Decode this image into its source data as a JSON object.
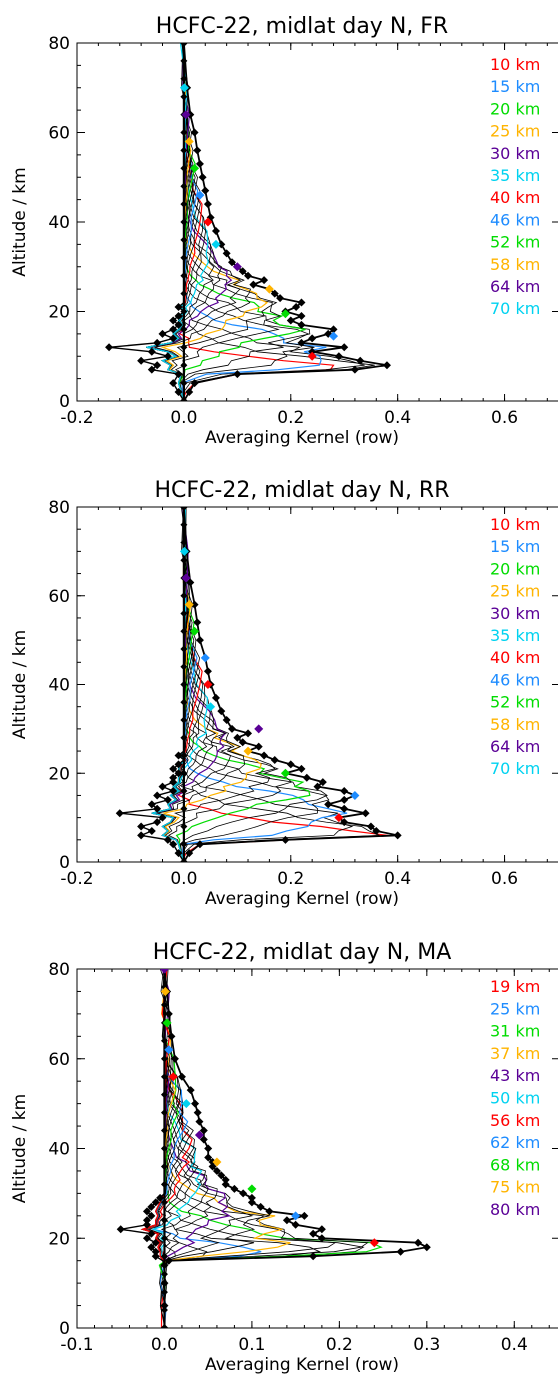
{
  "chart_data": [
    {
      "type": "line",
      "title": "HCFC-22, midlat day N, FR",
      "xlabel": "Averaging Kernel (row)",
      "ylabel": "Altitude / km",
      "xlim": [
        -0.2,
        0.7
      ],
      "ylim": [
        0,
        80
      ],
      "xticks": [
        "-0.2",
        "0.0",
        "0.2",
        "0.4",
        "0.6"
      ],
      "xtick_values": [
        -0.2,
        0.0,
        0.2,
        0.4,
        0.6
      ],
      "yticks": [
        "0",
        "20",
        "40",
        "60",
        "80"
      ],
      "ytick_values": [
        0,
        20,
        40,
        60,
        80
      ],
      "legend_position": "top-right",
      "legend": [
        {
          "label": "10 km",
          "color": "#ff0000"
        },
        {
          "label": "15 km",
          "color": "#1e8cff"
        },
        {
          "label": "20 km",
          "color": "#00dc00"
        },
        {
          "label": "25 km",
          "color": "#ffb400"
        },
        {
          "label": "30 km",
          "color": "#5a0096"
        },
        {
          "label": "35 km",
          "color": "#00d2f0"
        },
        {
          "label": "40 km",
          "color": "#ff0000"
        },
        {
          "label": "46 km",
          "color": "#1e8cff"
        },
        {
          "label": "52 km",
          "color": "#00dc00"
        },
        {
          "label": "58 km",
          "color": "#ffb400"
        },
        {
          "label": "64 km",
          "color": "#5a0096"
        },
        {
          "label": "70 km",
          "color": "#00d2f0"
        }
      ],
      "envelope": {
        "y": [
          0,
          2,
          4,
          6,
          7,
          8,
          9,
          10,
          11,
          12,
          13,
          14,
          15,
          16,
          17,
          18,
          19,
          20,
          21,
          22,
          23,
          24,
          25,
          26,
          27,
          28,
          29,
          30,
          31,
          33,
          35,
          38,
          41,
          44,
          47,
          50,
          53,
          56,
          60,
          64,
          70,
          80
        ],
        "right": [
          0.0,
          0.01,
          0.02,
          0.1,
          0.32,
          0.38,
          0.33,
          0.29,
          0.24,
          0.3,
          0.22,
          0.24,
          0.27,
          0.28,
          0.22,
          0.2,
          0.22,
          0.19,
          0.21,
          0.22,
          0.18,
          0.17,
          0.16,
          0.13,
          0.15,
          0.12,
          0.11,
          0.1,
          0.09,
          0.08,
          0.07,
          0.06,
          0.05,
          0.045,
          0.04,
          0.035,
          0.03,
          0.025,
          0.02,
          0.012,
          0.006,
          0.0
        ],
        "left": [
          0.0,
          -0.01,
          -0.02,
          -0.01,
          -0.06,
          -0.05,
          -0.08,
          -0.03,
          -0.06,
          -0.14,
          -0.05,
          -0.02,
          -0.04,
          -0.02,
          -0.01,
          -0.02,
          -0.01,
          0.0,
          -0.01,
          0.0,
          0.0,
          0.0,
          0.0,
          0.0,
          0.0,
          0.0,
          0.0,
          0.0,
          0.0,
          0.0,
          0.0,
          0.0,
          0.0,
          0.0,
          0.0,
          0.0,
          0.0,
          0.0,
          0.0,
          0.0,
          0.0,
          0.0
        ]
      },
      "peaks": [
        {
          "x": 0.24,
          "y": 10
        },
        {
          "x": 0.28,
          "y": 14.5
        },
        {
          "x": 0.19,
          "y": 19.5
        },
        {
          "x": 0.16,
          "y": 25
        },
        {
          "x": 0.1,
          "y": 30
        },
        {
          "x": 0.06,
          "y": 35
        },
        {
          "x": 0.045,
          "y": 40
        },
        {
          "x": 0.03,
          "y": 46
        },
        {
          "x": 0.02,
          "y": 52
        },
        {
          "x": 0.01,
          "y": 58
        },
        {
          "x": 0.004,
          "y": 64
        },
        {
          "x": 0.001,
          "y": 70
        }
      ]
    },
    {
      "type": "line",
      "title": "HCFC-22, midlat day N, RR",
      "xlabel": "Averaging Kernel (row)",
      "ylabel": "Altitude / km",
      "xlim": [
        -0.2,
        0.7
      ],
      "ylim": [
        0,
        80
      ],
      "xticks": [
        "-0.2",
        "0.0",
        "0.2",
        "0.4",
        "0.6"
      ],
      "xtick_values": [
        -0.2,
        0.0,
        0.2,
        0.4,
        0.6
      ],
      "yticks": [
        "0",
        "20",
        "40",
        "60",
        "80"
      ],
      "ytick_values": [
        0,
        20,
        40,
        60,
        80
      ],
      "legend_position": "top-right",
      "legend": [
        {
          "label": "10 km",
          "color": "#ff0000"
        },
        {
          "label": "15 km",
          "color": "#1e8cff"
        },
        {
          "label": "20 km",
          "color": "#00dc00"
        },
        {
          "label": "25 km",
          "color": "#ffb400"
        },
        {
          "label": "30 km",
          "color": "#5a0096"
        },
        {
          "label": "35 km",
          "color": "#00d2f0"
        },
        {
          "label": "40 km",
          "color": "#ff0000"
        },
        {
          "label": "46 km",
          "color": "#1e8cff"
        },
        {
          "label": "52 km",
          "color": "#00dc00"
        },
        {
          "label": "58 km",
          "color": "#ffb400"
        },
        {
          "label": "64 km",
          "color": "#5a0096"
        },
        {
          "label": "70 km",
          "color": "#00d2f0"
        }
      ],
      "envelope": {
        "y": [
          0,
          2,
          4,
          5,
          6,
          7,
          8,
          9,
          10,
          11,
          12,
          13,
          14,
          15,
          16,
          17,
          18,
          19,
          20,
          21,
          22,
          23,
          24,
          25,
          26,
          27,
          28,
          29,
          30,
          32,
          34,
          37,
          40,
          43,
          46,
          50,
          54,
          58,
          63,
          70,
          80
        ],
        "right": [
          0.0,
          0.01,
          0.03,
          0.19,
          0.4,
          0.36,
          0.35,
          0.3,
          0.29,
          0.34,
          0.3,
          0.27,
          0.3,
          0.32,
          0.3,
          0.25,
          0.26,
          0.23,
          0.19,
          0.22,
          0.2,
          0.17,
          0.15,
          0.12,
          0.14,
          0.11,
          0.1,
          0.12,
          0.09,
          0.08,
          0.07,
          0.06,
          0.05,
          0.045,
          0.04,
          0.03,
          0.025,
          0.02,
          0.012,
          0.005,
          0.0
        ],
        "left": [
          0.0,
          -0.01,
          -0.02,
          -0.03,
          -0.08,
          -0.06,
          -0.08,
          -0.05,
          -0.04,
          -0.12,
          -0.05,
          -0.06,
          -0.03,
          -0.05,
          -0.02,
          -0.04,
          -0.02,
          -0.02,
          -0.01,
          -0.02,
          -0.01,
          0.0,
          -0.01,
          0.0,
          0.0,
          0.0,
          0.0,
          0.0,
          0.0,
          0.0,
          0.0,
          0.0,
          0.0,
          0.0,
          0.0,
          0.0,
          0.0,
          0.0,
          0.0,
          0.0,
          0.0
        ]
      },
      "peaks": [
        {
          "x": 0.29,
          "y": 10
        },
        {
          "x": 0.32,
          "y": 15
        },
        {
          "x": 0.19,
          "y": 20
        },
        {
          "x": 0.12,
          "y": 25
        },
        {
          "x": 0.14,
          "y": 30
        },
        {
          "x": 0.05,
          "y": 35
        },
        {
          "x": 0.045,
          "y": 40
        },
        {
          "x": 0.04,
          "y": 46
        },
        {
          "x": 0.02,
          "y": 52
        },
        {
          "x": 0.01,
          "y": 58
        },
        {
          "x": 0.004,
          "y": 64
        },
        {
          "x": 0.001,
          "y": 70
        }
      ]
    },
    {
      "type": "line",
      "title": "HCFC-22, midlat day N, MA",
      "xlabel": "Averaging Kernel (row)",
      "ylabel": "Altitude / km",
      "xlim": [
        -0.1,
        0.45
      ],
      "ylim": [
        0,
        80
      ],
      "xticks": [
        "-0.1",
        "0.0",
        "0.1",
        "0.2",
        "0.3",
        "0.4"
      ],
      "xtick_values": [
        -0.1,
        0.0,
        0.1,
        0.2,
        0.3,
        0.4
      ],
      "yticks": [
        "0",
        "20",
        "40",
        "60",
        "80"
      ],
      "ytick_values": [
        0,
        20,
        40,
        60,
        80
      ],
      "legend_position": "top-right",
      "legend": [
        {
          "label": "19 km",
          "color": "#ff0000"
        },
        {
          "label": "25 km",
          "color": "#1e8cff"
        },
        {
          "label": "31 km",
          "color": "#00dc00"
        },
        {
          "label": "37 km",
          "color": "#ffb400"
        },
        {
          "label": "43 km",
          "color": "#5a0096"
        },
        {
          "label": "50 km",
          "color": "#00d2f0"
        },
        {
          "label": "56 km",
          "color": "#ff0000"
        },
        {
          "label": "62 km",
          "color": "#1e8cff"
        },
        {
          "label": "68 km",
          "color": "#00dc00"
        },
        {
          "label": "75 km",
          "color": "#ffb400"
        },
        {
          "label": "80 km",
          "color": "#5a0096"
        }
      ],
      "envelope": {
        "y": [
          0,
          5,
          10,
          14,
          15,
          16,
          17,
          18,
          19,
          20,
          21,
          22,
          23,
          24,
          25,
          26,
          27,
          28,
          29,
          30,
          31,
          32,
          33,
          34,
          35,
          36,
          37,
          38,
          40,
          42,
          44,
          46,
          48,
          50,
          53,
          56,
          60,
          65,
          70,
          75,
          80
        ],
        "right": [
          0.0,
          0.0,
          0.0,
          0.0,
          0.005,
          0.17,
          0.27,
          0.3,
          0.29,
          0.18,
          0.17,
          0.18,
          0.15,
          0.14,
          0.16,
          0.12,
          0.11,
          0.1,
          0.1,
          0.09,
          0.08,
          0.07,
          0.07,
          0.065,
          0.06,
          0.055,
          0.055,
          0.05,
          0.05,
          0.045,
          0.045,
          0.04,
          0.038,
          0.035,
          0.03,
          0.02,
          0.012,
          0.008,
          0.005,
          0.003,
          0.0
        ],
        "left": [
          0.0,
          0.0,
          0.0,
          0.0,
          -0.002,
          -0.01,
          -0.01,
          -0.015,
          -0.01,
          -0.02,
          -0.015,
          -0.05,
          -0.02,
          -0.02,
          -0.015,
          -0.02,
          -0.015,
          -0.01,
          -0.005,
          0.0,
          0.0,
          0.0,
          0.0,
          0.0,
          0.0,
          0.0,
          0.0,
          0.0,
          0.0,
          0.0,
          0.0,
          0.0,
          0.0,
          0.0,
          0.0,
          0.0,
          0.0,
          0.0,
          0.0,
          0.0,
          0.0
        ]
      },
      "peaks": [
        {
          "x": 0.24,
          "y": 19
        },
        {
          "x": 0.15,
          "y": 25
        },
        {
          "x": 0.1,
          "y": 31
        },
        {
          "x": 0.06,
          "y": 37
        },
        {
          "x": 0.04,
          "y": 43
        },
        {
          "x": 0.025,
          "y": 50
        },
        {
          "x": 0.01,
          "y": 56
        },
        {
          "x": 0.005,
          "y": 62
        },
        {
          "x": 0.003,
          "y": 68
        },
        {
          "x": 0.001,
          "y": 75
        },
        {
          "x": 0.0,
          "y": 80
        }
      ]
    }
  ]
}
